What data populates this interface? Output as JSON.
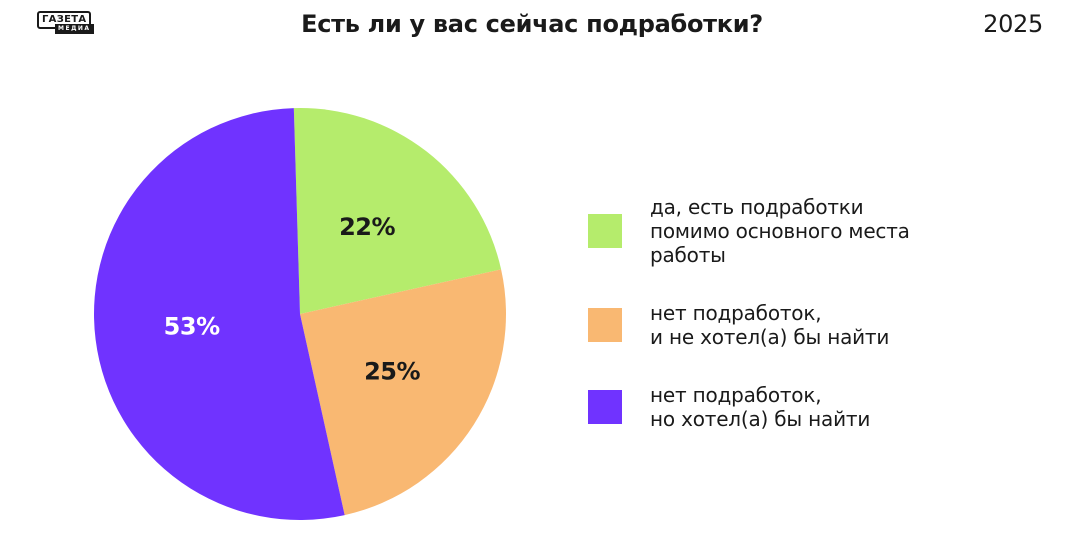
{
  "header": {
    "logo_top": "ГАЗЕТА",
    "logo_bottom": "МЕДИА",
    "title": "Есть ли у вас сейчас подработки?",
    "year": "2025"
  },
  "chart_data": {
    "type": "pie",
    "title": "Есть ли у вас сейчас подработки?",
    "slices": [
      {
        "label": "да, есть подработки\nпомимо основного места\nработы",
        "value": 22,
        "display": "22%",
        "color": "#b5ec6c",
        "text_color": "#1a1a1a"
      },
      {
        "label": "нет подработок,\nи не хотел(а) бы найти",
        "value": 25,
        "display": "25%",
        "color": "#f9b872",
        "text_color": "#1a1a1a"
      },
      {
        "label": "нет подработок,\nно хотел(а) бы найти",
        "value": 53,
        "display": "53%",
        "color": "#7033ff",
        "text_color": "#ffffff"
      }
    ],
    "slice_order": "clockwise from 12 o'clock",
    "legend_position": "right"
  }
}
